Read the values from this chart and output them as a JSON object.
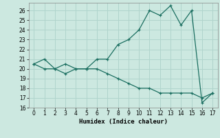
{
  "xlabel": "Humidex (Indice chaleur)",
  "background_color": "#cce8e0",
  "line_color": "#1a6e60",
  "grid_color": "#b0d4cc",
  "xlim": [
    -0.5,
    17.5
  ],
  "ylim": [
    16,
    26.8
  ],
  "xticks": [
    0,
    1,
    2,
    3,
    4,
    5,
    6,
    7,
    8,
    9,
    10,
    11,
    12,
    13,
    14,
    15,
    16,
    17
  ],
  "yticks": [
    16,
    17,
    18,
    19,
    20,
    21,
    22,
    23,
    24,
    25,
    26
  ],
  "series1_x": [
    0,
    1,
    2,
    3,
    4,
    5,
    6,
    7,
    8,
    9,
    10,
    11,
    12,
    13,
    14,
    15,
    16,
    17
  ],
  "series1_y": [
    20.5,
    21.0,
    20.0,
    20.5,
    20.0,
    20.0,
    21.0,
    21.0,
    22.5,
    23.0,
    24.0,
    26.0,
    25.5,
    26.5,
    24.5,
    26.0,
    16.5,
    17.5
  ],
  "series2_x": [
    0,
    1,
    2,
    3,
    4,
    5,
    6,
    7,
    8,
    9,
    10,
    11,
    12,
    13,
    14,
    15,
    16,
    17
  ],
  "series2_y": [
    20.5,
    20.0,
    20.0,
    19.5,
    20.0,
    20.0,
    20.0,
    19.5,
    19.0,
    18.5,
    18.0,
    18.0,
    17.5,
    17.5,
    17.5,
    17.5,
    17.0,
    17.5
  ]
}
